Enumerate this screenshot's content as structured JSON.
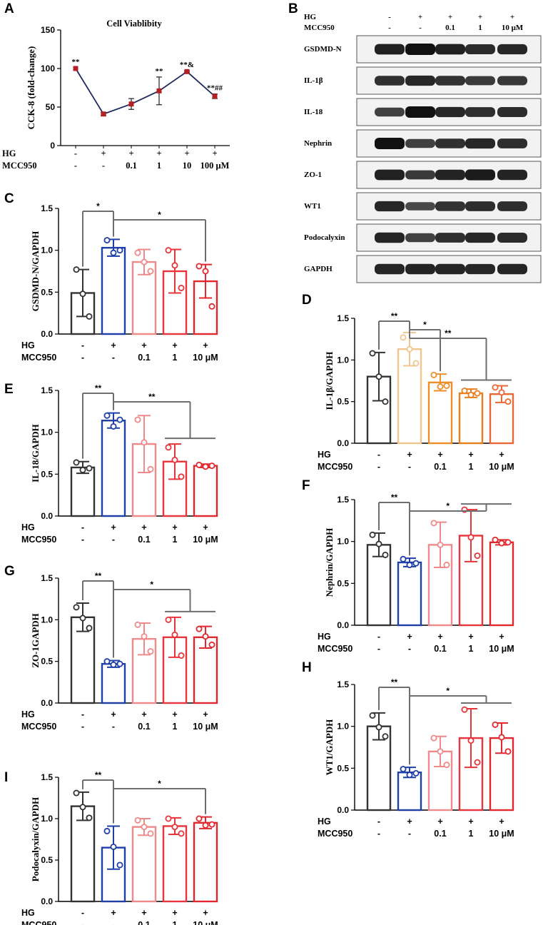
{
  "colors": {
    "groups": [
      "#333333",
      "#1f3fa8",
      "#f08a8a",
      "#e8343a",
      "#e0282e"
    ],
    "groups_D": [
      "#333333",
      "#f2c58e",
      "#ee8e2a",
      "#e87e1c",
      "#ea6838"
    ],
    "lineA": "#1f2a5e",
    "markerA": "#b52025",
    "bracket": "#6e6e6e"
  },
  "conditions": {
    "hg_label": "HG",
    "mcc_label": "MCC950",
    "hg": [
      "-",
      "+",
      "+",
      "+",
      "+"
    ],
    "mcc": [
      "-",
      "-",
      "0.1",
      "1",
      "10 μM"
    ],
    "hgA": [
      "-",
      "+",
      "+",
      "+",
      "+",
      "+"
    ],
    "mccA": [
      "-",
      "-",
      "0.1",
      "1",
      "10",
      "100 μM"
    ]
  },
  "blot": {
    "panel_label": "B",
    "lanes_hg": [
      "-",
      "+",
      "+",
      "+",
      "+"
    ],
    "lanes_mcc": [
      "-",
      "-",
      "0.1",
      "1",
      "10 μM"
    ],
    "bands": [
      {
        "name": "GSDMD-N",
        "intensity": [
          0.85,
          1.0,
          0.85,
          0.75,
          0.78
        ]
      },
      {
        "name": "IL-1β",
        "intensity": [
          0.7,
          0.78,
          0.68,
          0.6,
          0.62
        ]
      },
      {
        "name": "IL-18",
        "intensity": [
          0.55,
          1.0,
          0.78,
          0.72,
          0.74
        ]
      },
      {
        "name": "Nephrin",
        "intensity": [
          1.0,
          0.55,
          0.7,
          0.78,
          0.72
        ]
      },
      {
        "name": "ZO-1",
        "intensity": [
          0.85,
          0.6,
          0.82,
          0.9,
          0.82
        ]
      },
      {
        "name": "WT1",
        "intensity": [
          0.78,
          0.45,
          0.68,
          0.72,
          0.72
        ]
      },
      {
        "name": "Podocalyxin",
        "intensity": [
          0.8,
          0.55,
          0.72,
          0.78,
          0.75
        ]
      },
      {
        "name": "GAPDH",
        "intensity": [
          0.8,
          0.82,
          0.8,
          0.78,
          0.8
        ]
      }
    ]
  },
  "chart_data": [
    {
      "id": "A",
      "panel_label": "A",
      "type": "line",
      "title": "Cell Viablibity",
      "ylabel": "CCK-8 (fold-change)",
      "ylim": [
        0,
        150
      ],
      "yticks": [
        0,
        50,
        100,
        150
      ],
      "values": [
        100,
        41,
        54,
        71,
        96,
        64
      ],
      "errors": [
        0,
        2,
        7,
        18,
        1,
        3
      ],
      "annotations": [
        "**",
        "",
        "",
        "**",
        "**&",
        "**##"
      ]
    },
    {
      "id": "C",
      "panel_label": "C",
      "type": "bar",
      "ylabel": "GSDMD-N/GAPDH",
      "ylim": [
        0,
        1.5
      ],
      "yticks": [
        0.0,
        0.5,
        1.0,
        1.5
      ],
      "values": [
        0.49,
        1.03,
        0.86,
        0.75,
        0.63
      ],
      "errors": [
        0.28,
        0.1,
        0.15,
        0.26,
        0.2
      ],
      "points": [
        [
          0.77,
          0.48,
          0.21
        ],
        [
          1.12,
          0.97,
          1.0
        ],
        [
          0.97,
          0.86,
          0.75
        ],
        [
          1.0,
          0.82,
          0.55
        ],
        [
          0.81,
          0.75,
          0.33
        ]
      ],
      "significance": [
        {
          "label": "*",
          "type": "pair",
          "from": 0,
          "to": 1
        },
        {
          "label": "*",
          "type": "pair",
          "from": 1,
          "to": 4
        }
      ]
    },
    {
      "id": "D",
      "panel_label": "D",
      "type": "bar",
      "ylabel": "IL-1β/GAPDH",
      "ylim": [
        0,
        1.5
      ],
      "yticks": [
        0.0,
        0.5,
        1.0,
        1.5
      ],
      "values": [
        0.8,
        1.13,
        0.73,
        0.6,
        0.59
      ],
      "errors": [
        0.29,
        0.2,
        0.1,
        0.05,
        0.1
      ],
      "points": [
        [
          1.08,
          0.8,
          0.5
        ],
        [
          1.27,
          1.13,
          0.96
        ],
        [
          0.82,
          0.68,
          0.69
        ],
        [
          0.63,
          0.58,
          0.6
        ],
        [
          0.67,
          0.61,
          0.5
        ]
      ],
      "significance": [
        {
          "label": "**",
          "type": "pair",
          "from": 0,
          "to": 1
        },
        {
          "label": "*",
          "type": "pair",
          "from": 1,
          "to": 2
        },
        {
          "label": "**",
          "type": "group",
          "from": 1,
          "to": [
            3,
            4
          ]
        }
      ]
    },
    {
      "id": "E",
      "panel_label": "E",
      "type": "bar",
      "ylabel": "IL-18/GAPDH",
      "ylim": [
        0,
        1.5
      ],
      "yticks": [
        0.0,
        0.5,
        1.0,
        1.5
      ],
      "values": [
        0.58,
        1.14,
        0.86,
        0.65,
        0.6
      ],
      "errors": [
        0.07,
        0.09,
        0.34,
        0.21,
        0.02
      ],
      "points": [
        [
          0.64,
          0.55,
          0.57
        ],
        [
          1.2,
          1.07,
          1.15
        ],
        [
          1.15,
          0.88,
          0.56
        ],
        [
          0.82,
          0.67,
          0.47
        ],
        [
          0.61,
          0.59,
          0.6
        ]
      ],
      "significance": [
        {
          "label": "**",
          "type": "pair",
          "from": 0,
          "to": 1
        },
        {
          "label": "**",
          "type": "group",
          "from": 1,
          "to": [
            3,
            4
          ]
        }
      ]
    },
    {
      "id": "F",
      "panel_label": "F",
      "type": "bar",
      "ylabel": "Nephrin/GAPDH",
      "ylim": [
        0,
        1.5
      ],
      "yticks": [
        0.0,
        0.5,
        1.0,
        1.5
      ],
      "values": [
        0.96,
        0.75,
        0.96,
        1.07,
        0.99
      ],
      "errors": [
        0.14,
        0.05,
        0.27,
        0.31,
        0.03
      ],
      "points": [
        [
          1.08,
          0.97,
          0.84
        ],
        [
          0.79,
          0.72,
          0.74
        ],
        [
          1.22,
          0.96,
          0.72
        ],
        [
          1.38,
          1.05,
          0.83
        ],
        [
          1.02,
          0.98,
          0.99
        ]
      ],
      "significance": [
        {
          "label": "**",
          "type": "pair",
          "from": 0,
          "to": 1
        },
        {
          "label": "*",
          "type": "group",
          "from": 1,
          "to": [
            3,
            4
          ]
        }
      ]
    },
    {
      "id": "G",
      "panel_label": "G",
      "type": "bar",
      "ylabel": "ZO-1GAPDH",
      "ylim": [
        0,
        1.5
      ],
      "yticks": [
        0.0,
        0.5,
        1.0,
        1.5
      ],
      "values": [
        1.03,
        0.47,
        0.77,
        0.79,
        0.79
      ],
      "errors": [
        0.17,
        0.04,
        0.19,
        0.24,
        0.13
      ],
      "points": [
        [
          1.15,
          1.02,
          0.9
        ],
        [
          0.5,
          0.46,
          0.47
        ],
        [
          0.94,
          0.8,
          0.62
        ],
        [
          1.0,
          0.82,
          0.57
        ],
        [
          0.89,
          0.8,
          0.7
        ]
      ],
      "significance": [
        {
          "label": "**",
          "type": "pair",
          "from": 0,
          "to": 1
        },
        {
          "label": "*",
          "type": "group",
          "from": 1,
          "to": [
            3,
            4
          ]
        }
      ]
    },
    {
      "id": "H",
      "panel_label": "H",
      "type": "bar",
      "ylabel": "WT1/GAPDH",
      "ylim": [
        0,
        1.5
      ],
      "yticks": [
        0.0,
        0.5,
        1.0,
        1.5
      ],
      "values": [
        1.0,
        0.45,
        0.7,
        0.86,
        0.86
      ],
      "errors": [
        0.16,
        0.06,
        0.18,
        0.35,
        0.18
      ],
      "points": [
        [
          1.13,
          0.99,
          0.88
        ],
        [
          0.49,
          0.42,
          0.44
        ],
        [
          0.86,
          0.7,
          0.54
        ],
        [
          1.2,
          0.83,
          0.57
        ],
        [
          1.02,
          0.87,
          0.7
        ]
      ],
      "significance": [
        {
          "label": "**",
          "type": "pair",
          "from": 0,
          "to": 1
        },
        {
          "label": "*",
          "type": "group",
          "from": 1,
          "to": [
            3,
            4
          ]
        }
      ]
    },
    {
      "id": "I",
      "panel_label": "I",
      "type": "bar",
      "ylabel": "Podocalyxin/GAPDH",
      "ylim": [
        0,
        1.5
      ],
      "yticks": [
        0.0,
        0.5,
        1.0,
        1.5
      ],
      "values": [
        1.15,
        0.65,
        0.9,
        0.91,
        0.95
      ],
      "errors": [
        0.17,
        0.26,
        0.1,
        0.1,
        0.07
      ],
      "points": [
        [
          1.31,
          1.14,
          1.01
        ],
        [
          0.85,
          0.66,
          0.44
        ],
        [
          0.98,
          0.9,
          0.82
        ],
        [
          1.0,
          0.9,
          0.82
        ],
        [
          1.0,
          0.92,
          0.93
        ]
      ],
      "significance": [
        {
          "label": "**",
          "type": "pair",
          "from": 0,
          "to": 1
        },
        {
          "label": "*",
          "type": "pair",
          "from": 1,
          "to": 4
        }
      ]
    }
  ]
}
